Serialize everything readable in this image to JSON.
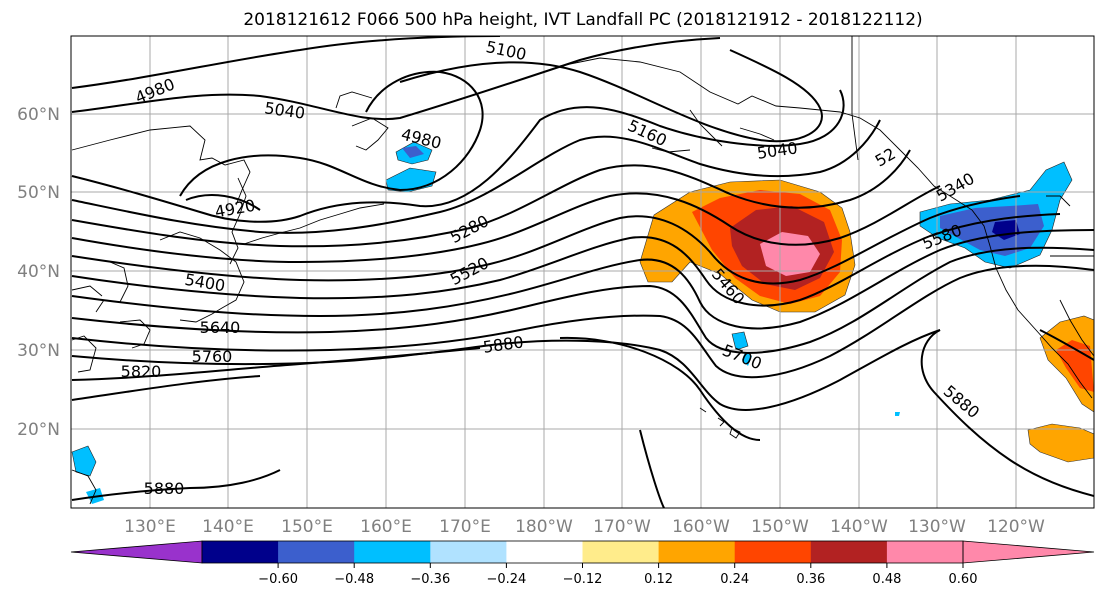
{
  "title": "2018121612 F066 500 hPa height, IVT Landfall PC (2018121912 - 2018122112)",
  "lat_ticks": [
    "60°N",
    "50°N",
    "40°N",
    "30°N",
    "20°N"
  ],
  "lon_ticks": [
    "130°E",
    "140°E",
    "150°E",
    "160°E",
    "170°E",
    "180°W",
    "170°W",
    "160°W",
    "150°W",
    "140°W",
    "130°W",
    "120°W"
  ],
  "contour_labels": [
    "4980",
    "5100",
    "5040",
    "4980",
    "5160",
    "5040",
    "52",
    "5340",
    "4920",
    "5280",
    "5580",
    "5400",
    "5520",
    "5460",
    "5640",
    "5760",
    "5880",
    "5700",
    "5820",
    "5880",
    "5880"
  ],
  "colorbar": {
    "ticks": [
      "−0.60",
      "−0.48",
      "−0.36",
      "−0.24",
      "−0.12",
      "0.12",
      "0.24",
      "0.36",
      "0.48",
      "0.60"
    ],
    "colors": [
      "#9932cc",
      "#00008b",
      "#3c5fcd",
      "#00bfff",
      "#b0e2ff",
      "#ffffff",
      "#ffec8b",
      "#ffa500",
      "#ff4500",
      "#b22222",
      "#ff88aa",
      "#ff88aa"
    ]
  }
}
